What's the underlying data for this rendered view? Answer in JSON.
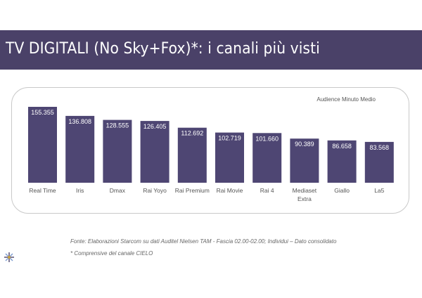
{
  "header": {
    "title": "TV DIGITALI (No Sky+Fox)*: i canali più visti"
  },
  "chart_data": {
    "type": "bar",
    "legend": "Audience Minuto Medio",
    "categories": [
      "Real Time",
      "Iris",
      "Dmax",
      "Rai Yoyo",
      "Rai Premium",
      "Rai Movie",
      "Rai 4",
      "Mediaset\nExtra",
      "Giallo",
      "La5"
    ],
    "values": [
      155355,
      136808,
      128555,
      126405,
      112692,
      102719,
      101660,
      90389,
      86658,
      83568
    ],
    "value_labels": [
      "155.355",
      "136.808",
      "128.555",
      "126.405",
      "112.692",
      "102.719",
      "101.660",
      "90.389",
      "86.658",
      "83.568"
    ],
    "bar_color": "#4e4673",
    "grid": false
  },
  "footnotes": {
    "source": "Fonte: Elaborazioni Starcom su dati Auditel  Nielsen TAM  - Fascia 02.00-02.00; Individui – Dato consolidato",
    "note": "* Comprensive del canale CIELO"
  },
  "colors": {
    "title_bar": "#4a4168",
    "bar": "#4e4673",
    "frame_border": "#c9c9c9"
  },
  "logo": {
    "icon": "starburst-logo-icon"
  }
}
